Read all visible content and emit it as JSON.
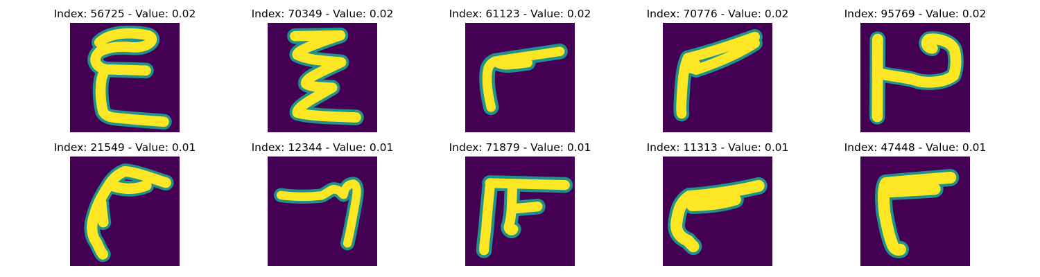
{
  "figure": {
    "colormap": "viridis",
    "background_color": "#440154",
    "stroke_color": "#fde725",
    "edge_color": "#21918c",
    "panels": [
      {
        "title": "Index: 56725 - Value: 0.02",
        "index": "56725",
        "value": "0.02",
        "glyph": "epsilon"
      },
      {
        "title": "Index: 70349 - Value: 0.02",
        "index": "70349",
        "value": "0.02",
        "glyph": "sigma"
      },
      {
        "title": "Index: 61123 - Value: 0.02",
        "index": "61123",
        "value": "0.02",
        "glyph": "corner-stroke"
      },
      {
        "title": "Index: 70776 - Value: 0.02",
        "index": "70776",
        "value": "0.02",
        "glyph": "corner-stroke-loop"
      },
      {
        "title": "Index: 95769 - Value: 0.02",
        "index": "95769",
        "value": "0.02",
        "glyph": "h-with-loop"
      },
      {
        "title": "Index: 21549 - Value: 0.01",
        "index": "21549",
        "value": "0.01",
        "glyph": "curved-corner"
      },
      {
        "title": "Index: 12344 - Value: 0.01",
        "index": "12344",
        "value": "0.01",
        "glyph": "seven-like"
      },
      {
        "title": "Index: 71879 - Value: 0.01",
        "index": "71879",
        "value": "0.01",
        "glyph": "double-stem"
      },
      {
        "title": "Index: 11313 - Value: 0.01",
        "index": "11313",
        "value": "0.01",
        "glyph": "thick-corner"
      },
      {
        "title": "Index: 47448 - Value: 0.01",
        "index": "47448",
        "value": "0.01",
        "glyph": "gamma-like"
      }
    ]
  }
}
